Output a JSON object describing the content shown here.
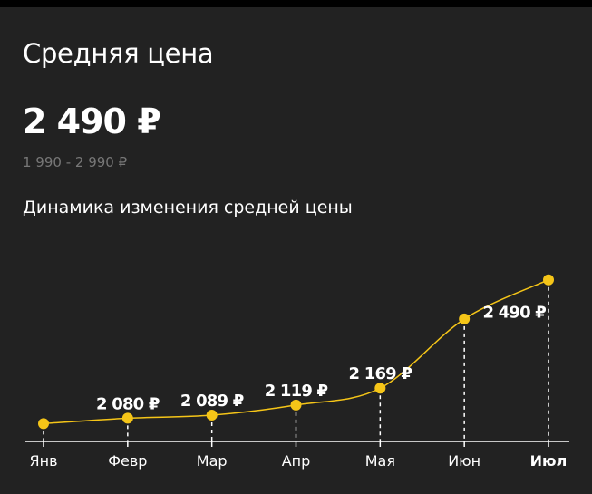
{
  "header": {
    "title": "Средняя цена",
    "price": "2 490 ₽",
    "range": "1 990 - 2 990 ₽"
  },
  "chart_data": {
    "type": "line",
    "title": "Динамика изменения средней цены",
    "categories": [
      "Янв",
      "Февр",
      "Мар",
      "Апр",
      "Мая",
      "Июн",
      "Июл"
    ],
    "values": [
      2064,
      2080,
      2089,
      2119,
      2169,
      2374,
      2490
    ],
    "value_labels": [
      null,
      "2 080 ₽",
      "2 089 ₽",
      "2 119 ₽",
      "2 169 ₽",
      null,
      "2 490 ₽"
    ],
    "color": "#f5c518",
    "ylim": [
      2030,
      2500
    ]
  }
}
